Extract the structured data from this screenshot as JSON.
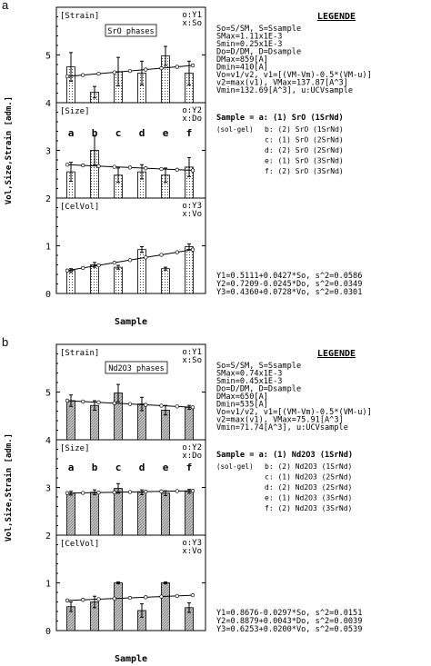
{
  "figures": [
    {
      "letter": "a",
      "phase_label": "SrO phases",
      "ylabel": "Vol,Size,Strain [adm.]",
      "xlabel": "Sample",
      "legend_title": "LEGENDE",
      "legend_lines": [
        "So=S/SM, S=Ssample",
        "    SMax=1.11x1E-3",
        "    Smin=0.25x1E-3",
        "Do=D/DM, D=Dsample",
        "    DMax=859[A]",
        "    Dmin=410[A]",
        "Vo=v1/v2, v1=[(VM-Vm)-0.5*(VM-u)]",
        "    v2=max(v1), VMax=137.87[A^3]",
        "    Vmin=132.69[A^3], u:UCVsample"
      ],
      "sample_header": "Sample = a: (1) SrO  (1SrNd)",
      "sample_method": "(sol-gel)",
      "samples": [
        "b: (2) SrO  (1SrNd)",
        "c: (1) SrO  (2SrNd)",
        "d: (2) SrO  (2SrNd)",
        "e: (1) SrO  (3SrNd)",
        "f: (2) SrO  (3SrNd)"
      ],
      "fits": [
        "Y1=0.5111+0.0427*So, s^2=0.0586",
        "Y2=0.7209-0.0245*Do, s^2=0.0349",
        "Y3=0.4360+0.0728*Vo, s^2=0.0301"
      ]
    },
    {
      "letter": "b",
      "phase_label": "Nd2O3 phases",
      "ylabel": "Vol,Size,Strain [adm.]",
      "xlabel": "Sample",
      "legend_title": "LEGENDE",
      "legend_lines": [
        "So=S/SM, S=Ssample",
        "    SMax=0.74x1E-3",
        "    Smin=0.45x1E-3",
        "Do=D/DM, D=Dsample",
        "    DMax=650[A]",
        "    Dmin=535[A]",
        "Vo=v1/v2, v1=[(VM-Vm)-0.5*(VM-u)]",
        "    v2=max(v1), VMax=75.91[A^3]",
        "    Vmin=71.74[A^3], u:UCVsample"
      ],
      "sample_header": "Sample = a: (1) Nd2O3  (1SrNd)",
      "sample_method": "(sol-gel)",
      "samples": [
        "b: (2) Nd2O3  (1SrNd)",
        "c: (1) Nd2O3  (2SrNd)",
        "d: (2) Nd2O3  (2SrNd)",
        "e: (1) Nd2O3  (3SrNd)",
        "f: (2) Nd2O3  (3SrNd)"
      ],
      "fits": [
        "Y1=0.8676-0.0297*So, s^2=0.0151",
        "Y2=0.8879+0.0043*Do, s^2=0.0039",
        "Y3=0.6253+0.0200*Vo, s^2=0.0539"
      ]
    }
  ],
  "chart_data": [
    {
      "type": "bar",
      "figure": "a",
      "categories": [
        "a",
        "b",
        "c",
        "d",
        "e",
        "f"
      ],
      "ylim": [
        0,
        6
      ],
      "yticks": [
        0,
        1,
        2,
        3,
        4,
        5
      ],
      "bar_style": "dotted",
      "panels": [
        {
          "label": "[Strain]",
          "keys": [
            "o:Y1",
            "x:So"
          ],
          "ylim": [
            4,
            6
          ],
          "values": [
            4.75,
            4.22,
            4.65,
            4.62,
            4.98,
            4.62
          ],
          "err": [
            0.3,
            0.12,
            0.3,
            0.25,
            0.2,
            0.25
          ],
          "fit_start": 4.55,
          "fit_end": 4.78
        },
        {
          "label": "[Size]",
          "keys": [
            "o:Y2",
            "x:Do"
          ],
          "ylim": [
            2,
            4
          ],
          "letters_y": 3.3,
          "values": [
            2.55,
            3.0,
            2.48,
            2.55,
            2.48,
            2.65
          ],
          "err": [
            0.2,
            0.3,
            0.15,
            0.15,
            0.15,
            0.2
          ],
          "fit_start": 2.7,
          "fit_end": 2.58
        },
        {
          "label": "[CelVol]",
          "keys": [
            "o:Y3",
            "x:Vo"
          ],
          "ylim": [
            0,
            2
          ],
          "values": [
            0.48,
            0.6,
            0.55,
            0.92,
            0.52,
            0.98
          ],
          "err": [
            0.04,
            0.05,
            0.04,
            0.06,
            0.03,
            0.06
          ],
          "fit_start": 0.48,
          "fit_end": 0.92
        }
      ]
    },
    {
      "type": "bar",
      "figure": "b",
      "categories": [
        "a",
        "b",
        "c",
        "d",
        "e",
        "f"
      ],
      "ylim": [
        0,
        6
      ],
      "yticks": [
        0,
        1,
        2,
        3,
        4,
        5
      ],
      "bar_style": "hatched",
      "panels": [
        {
          "label": "[Strain]",
          "keys": [
            "o:Y1",
            "x:So"
          ],
          "ylim": [
            4,
            6
          ],
          "values": [
            4.82,
            4.72,
            4.98,
            4.75,
            4.62,
            4.68
          ],
          "err": [
            0.12,
            0.1,
            0.18,
            0.14,
            0.1,
            0.04
          ],
          "fit_start": 4.82,
          "fit_end": 4.68
        },
        {
          "label": "[Size]",
          "keys": [
            "o:Y2",
            "x:Do"
          ],
          "ylim": [
            2,
            4
          ],
          "letters_y": 3.35,
          "values": [
            2.88,
            2.9,
            2.98,
            2.9,
            2.88,
            2.92
          ],
          "err": [
            0.04,
            0.05,
            0.1,
            0.05,
            0.05,
            0.04
          ],
          "fit_start": 2.88,
          "fit_end": 2.93
        },
        {
          "label": "[CelVol]",
          "keys": [
            "o:Y3",
            "x:Vo"
          ],
          "ylim": [
            0,
            2
          ],
          "values": [
            0.5,
            0.6,
            1.0,
            0.42,
            1.0,
            0.48
          ],
          "err": [
            0.1,
            0.12,
            0.02,
            0.14,
            0.02,
            0.1
          ],
          "fit_start": 0.63,
          "fit_end": 0.74
        }
      ]
    }
  ]
}
